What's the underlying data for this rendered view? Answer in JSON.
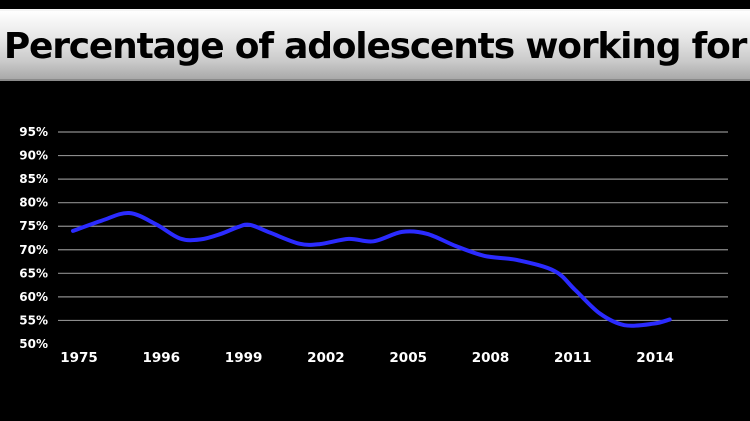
{
  "chart_data": {
    "type": "line",
    "title": "Percentage of adolescents working for pay",
    "xlabel": "",
    "ylabel": "",
    "x_tick_labels": [
      "1975",
      "1996",
      "1999",
      "2002",
      "2005",
      "2008",
      "2011",
      "2014"
    ],
    "y_tick_labels": [
      "50%",
      "55%",
      "60%",
      "65%",
      "70%",
      "75%",
      "80%",
      "85%",
      "90%",
      "95%"
    ],
    "ylim": [
      50,
      95
    ],
    "grid": true,
    "legend": "none",
    "series": [
      {
        "color": "#2b2bff",
        "points": [
          {
            "x": 0.0,
            "y": 74.0
          },
          {
            "x": 0.35,
            "y": 76.2
          },
          {
            "x": 0.68,
            "y": 77.8
          },
          {
            "x": 1.0,
            "y": 75.5
          },
          {
            "x": 1.3,
            "y": 72.4
          },
          {
            "x": 1.55,
            "y": 72.2
          },
          {
            "x": 1.8,
            "y": 73.4
          },
          {
            "x": 2.0,
            "y": 74.8
          },
          {
            "x": 2.15,
            "y": 75.3
          },
          {
            "x": 2.4,
            "y": 73.6
          },
          {
            "x": 2.75,
            "y": 71.3
          },
          {
            "x": 3.0,
            "y": 71.2
          },
          {
            "x": 3.35,
            "y": 72.3
          },
          {
            "x": 3.65,
            "y": 71.8
          },
          {
            "x": 4.0,
            "y": 73.8
          },
          {
            "x": 4.3,
            "y": 73.4
          },
          {
            "x": 4.65,
            "y": 70.8
          },
          {
            "x": 5.0,
            "y": 68.7
          },
          {
            "x": 5.4,
            "y": 67.8
          },
          {
            "x": 5.85,
            "y": 65.5
          },
          {
            "x": 6.1,
            "y": 61.5
          },
          {
            "x": 6.4,
            "y": 56.5
          },
          {
            "x": 6.7,
            "y": 54.0
          },
          {
            "x": 7.05,
            "y": 54.3
          },
          {
            "x": 7.25,
            "y": 55.2
          }
        ]
      }
    ]
  }
}
